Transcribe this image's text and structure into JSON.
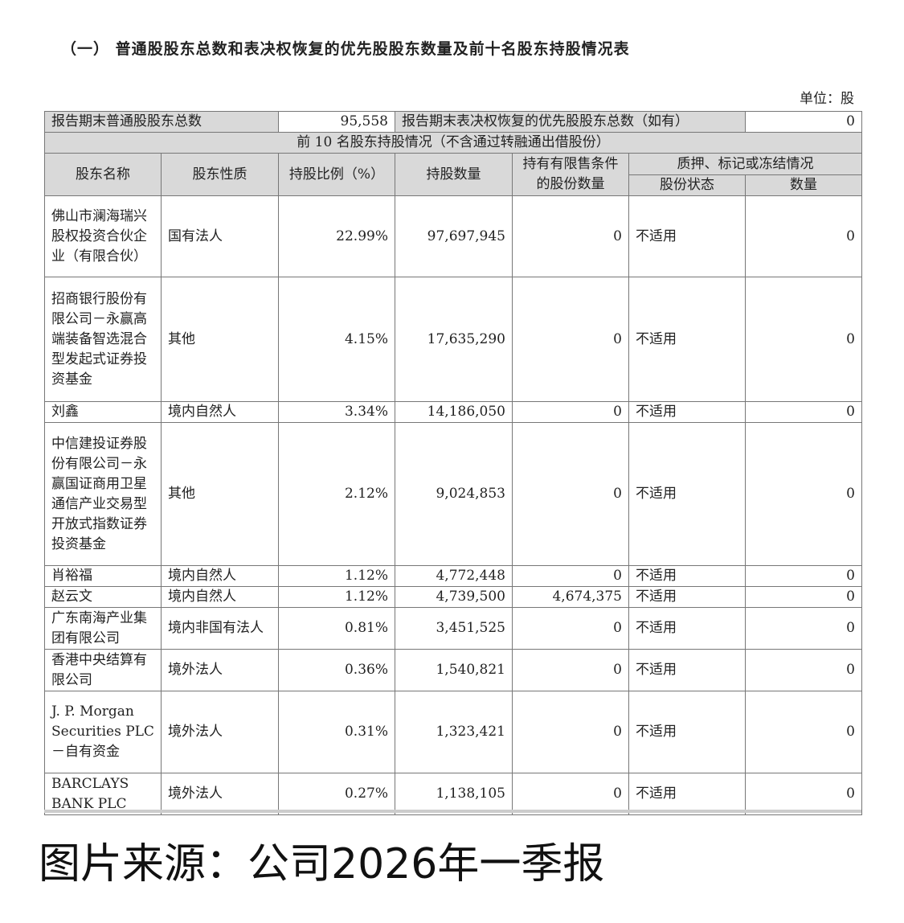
{
  "title": "（一） 普通股股东总数和表决权恢复的优先股股东数量及前十名股东持股情况表",
  "unit": "单位：股",
  "summary": {
    "common_label": "报告期末普通股股东总数",
    "common_value": "95,558",
    "preferred_label": "报告期末表决权恢复的优先股股东总数（如有）",
    "preferred_value": "0"
  },
  "section_header": "前 10 名股东持股情况（不含通过转融通出借股份）",
  "headers": {
    "name": "股东名称",
    "nature": "股东性质",
    "ratio": "持股比例（%）",
    "shares": "持股数量",
    "restricted": "持有有限售条件的股份数量",
    "pledge": "质押、标记或冻结情况",
    "status": "股份状态",
    "amount": "数量"
  },
  "rows": [
    {
      "name": "佛山市澜海瑞兴股权投资合伙企业（有限合伙）",
      "nature": "国有法人",
      "ratio": "22.99%",
      "shares": "97,697,945",
      "restricted": "0",
      "status": "不适用",
      "amount": "0"
    },
    {
      "name": "招商银行股份有限公司－永赢高端装备智选混合型发起式证券投资基金",
      "nature": "其他",
      "ratio": "4.15%",
      "shares": "17,635,290",
      "restricted": "0",
      "status": "不适用",
      "amount": "0"
    },
    {
      "name": "刘鑫",
      "nature": "境内自然人",
      "ratio": "3.34%",
      "shares": "14,186,050",
      "restricted": "0",
      "status": "不适用",
      "amount": "0"
    },
    {
      "name": "中信建投证券股份有限公司－永赢国证商用卫星通信产业交易型开放式指数证券投资基金",
      "nature": "其他",
      "ratio": "2.12%",
      "shares": "9,024,853",
      "restricted": "0",
      "status": "不适用",
      "amount": "0"
    },
    {
      "name": "肖裕福",
      "nature": "境内自然人",
      "ratio": "1.12%",
      "shares": "4,772,448",
      "restricted": "0",
      "status": "不适用",
      "amount": "0"
    },
    {
      "name": "赵云文",
      "nature": "境内自然人",
      "ratio": "1.12%",
      "shares": "4,739,500",
      "restricted": "4,674,375",
      "status": "不适用",
      "amount": "0"
    },
    {
      "name": "广东南海产业集团有限公司",
      "nature": "境内非国有法人",
      "ratio": "0.81%",
      "shares": "3,451,525",
      "restricted": "0",
      "status": "不适用",
      "amount": "0"
    },
    {
      "name": "香港中央结算有限公司",
      "nature": "境外法人",
      "ratio": "0.36%",
      "shares": "1,540,821",
      "restricted": "0",
      "status": "不适用",
      "amount": "0"
    },
    {
      "name": "J. P. Morgan Securities PLC－自有资金",
      "nature": "境外法人",
      "ratio": "0.31%",
      "shares": "1,323,421",
      "restricted": "0",
      "status": "不适用",
      "amount": "0"
    },
    {
      "name": "BARCLAYS BANK PLC",
      "nature": "境外法人",
      "ratio": "0.27%",
      "shares": "1,138,105",
      "restricted": "0",
      "status": "不适用",
      "amount": "0"
    }
  ],
  "source": "图片来源：公司2026年一季报"
}
